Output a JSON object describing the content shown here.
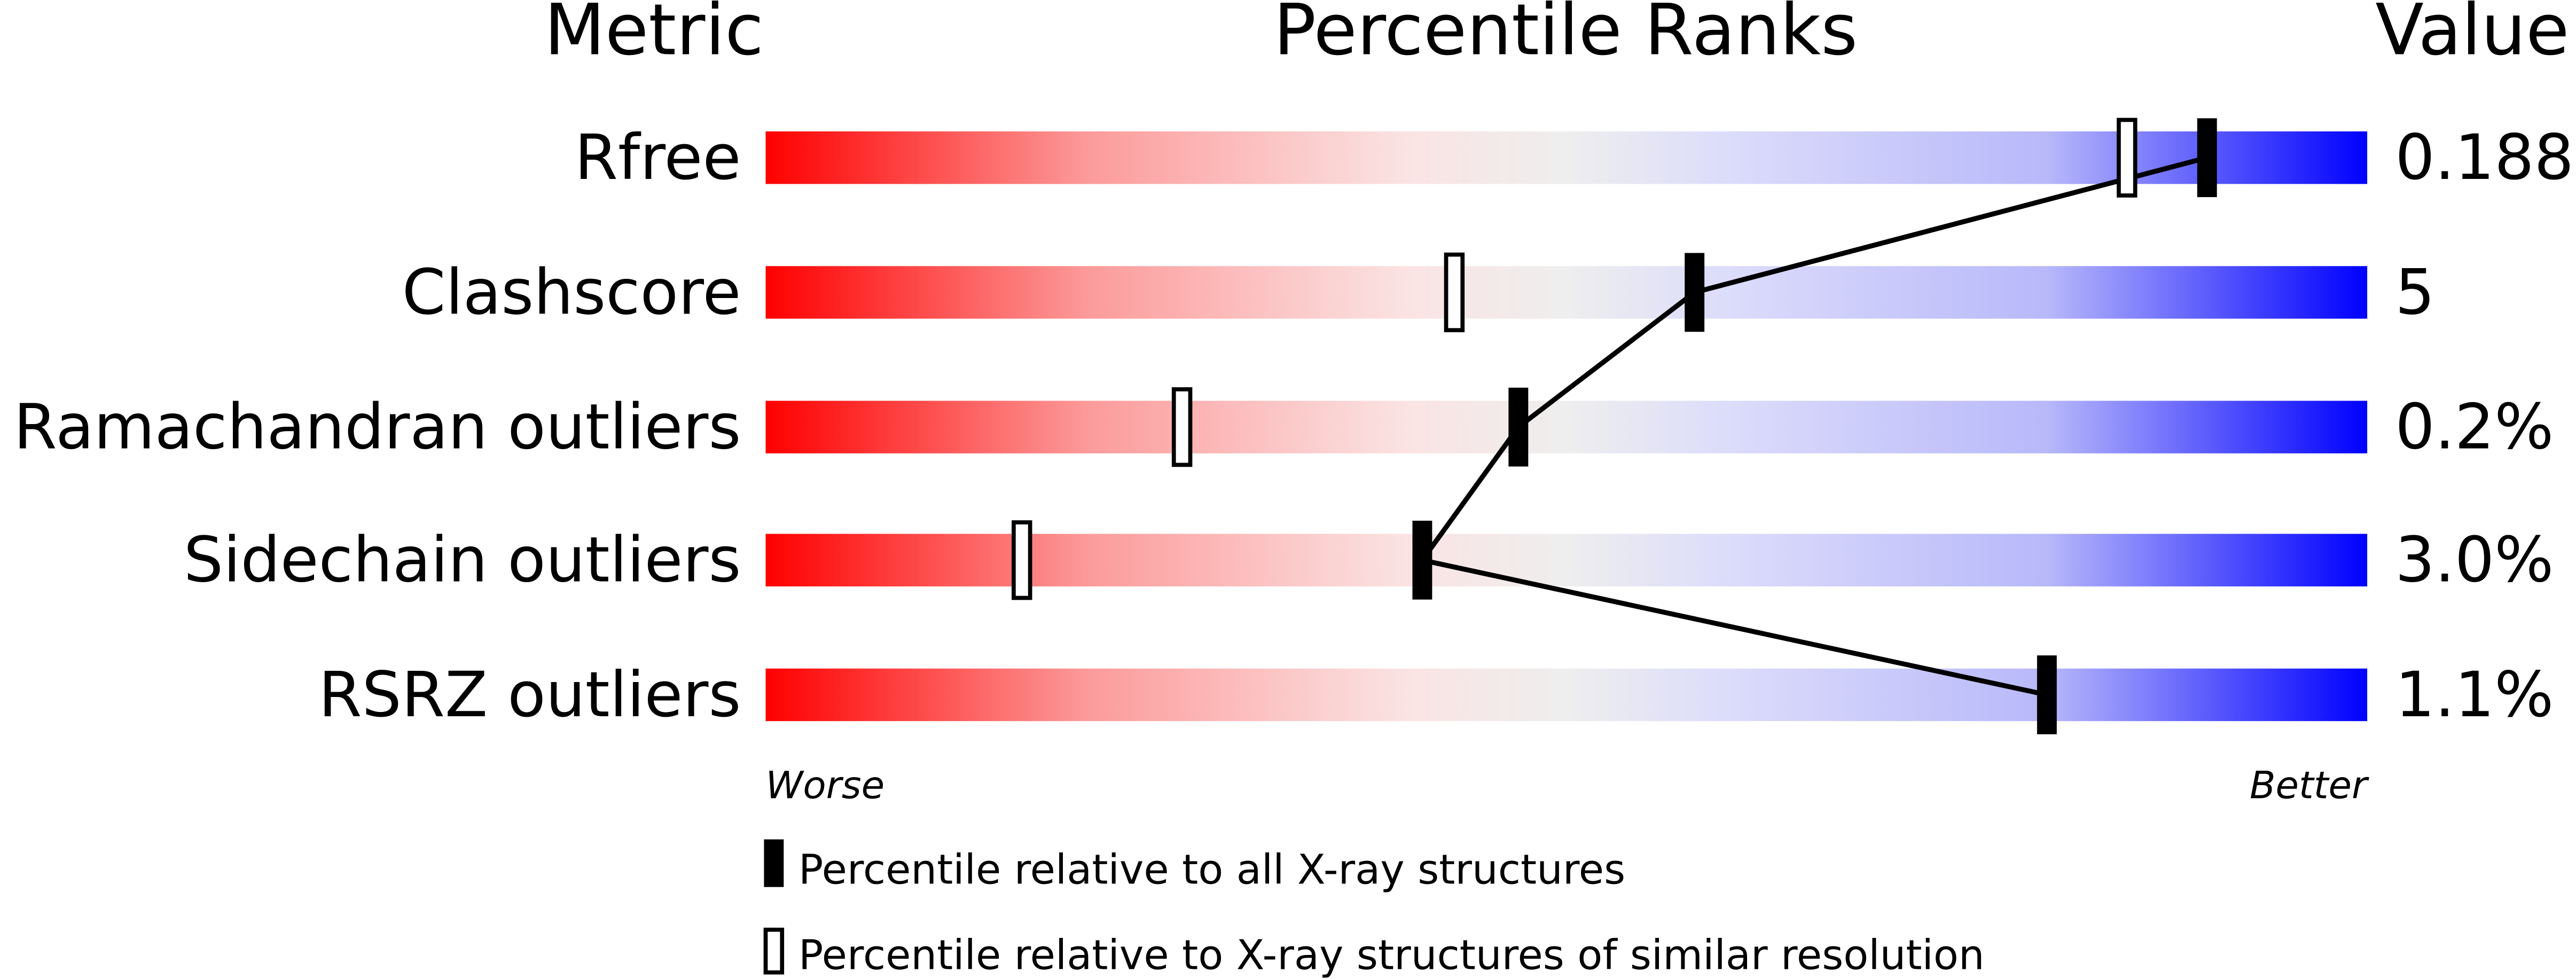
{
  "chart_data": {
    "type": "percentile-slider",
    "headers": {
      "metric": "Metric",
      "ranks": "Percentile Ranks",
      "value": "Value"
    },
    "xlim": [
      0,
      100
    ],
    "rows": [
      {
        "metric": "Rfree",
        "value": "0.188",
        "percentile_all": 90,
        "percentile_similar": 85
      },
      {
        "metric": "Clashscore",
        "value": "5",
        "percentile_all": 58,
        "percentile_similar": 43
      },
      {
        "metric": "Ramachandran outliers",
        "value": "0.2%",
        "percentile_all": 47,
        "percentile_similar": 26
      },
      {
        "metric": "Sidechain outliers",
        "value": "3.0%",
        "percentile_all": 41,
        "percentile_similar": 16
      },
      {
        "metric": "RSRZ outliers",
        "value": "1.1%",
        "percentile_all": 80,
        "percentile_similar": null
      }
    ],
    "axis_labels": {
      "left": "Worse",
      "right": "Better"
    },
    "legend": {
      "all": "Percentile relative to all X-ray structures",
      "similar": "Percentile relative to X-ray structures of similar resolution"
    },
    "colors": {
      "worse": "#ff0000",
      "middle": "#eeeeee",
      "better": "#0000ff",
      "marker": "#000000"
    }
  }
}
